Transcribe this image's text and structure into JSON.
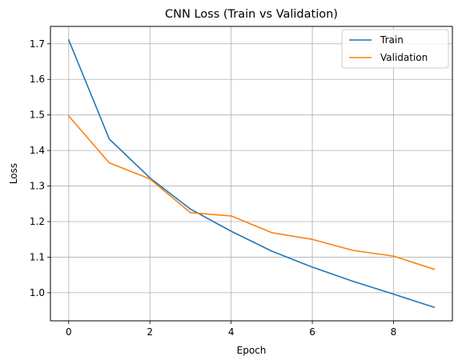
{
  "chart_data": {
    "type": "line",
    "title": "CNN Loss (Train vs Validation)",
    "xlabel": "Epoch",
    "ylabel": "Loss",
    "x": [
      0,
      1,
      2,
      3,
      4,
      5,
      6,
      7,
      8,
      9
    ],
    "xlim": [
      -0.45,
      9.45
    ],
    "ylim": [
      0.921,
      1.749
    ],
    "xticks": [
      0,
      2,
      4,
      6,
      8
    ],
    "yticks": [
      1.0,
      1.1,
      1.2,
      1.3,
      1.4,
      1.5,
      1.6,
      1.7
    ],
    "grid": true,
    "legend_position": "upper right",
    "series": [
      {
        "name": "Train",
        "color": "#1f77b4",
        "values": [
          1.711,
          1.432,
          1.323,
          1.235,
          1.173,
          1.117,
          1.072,
          1.032,
          0.996,
          0.959
        ]
      },
      {
        "name": "Validation",
        "color": "#ff7f0e",
        "values": [
          1.497,
          1.365,
          1.32,
          1.225,
          1.216,
          1.169,
          1.15,
          1.119,
          1.103,
          1.066
        ]
      }
    ]
  }
}
